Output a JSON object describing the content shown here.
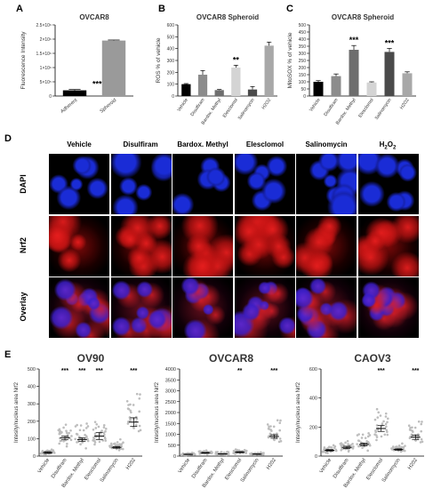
{
  "panels": {
    "A": {
      "letter": "A",
      "chart_data": {
        "type": "bar",
        "title": "OVCAR8",
        "ylabel": "Fluorescence Intensity",
        "categories": [
          "Adherent",
          "Spheroid"
        ],
        "values": [
          200000,
          1950000
        ],
        "errors": [
          30000,
          20000
        ],
        "colors": [
          "#000000",
          "#9a9a9a"
        ],
        "ylim": [
          0,
          2500000
        ],
        "yticks": [
          "0",
          "5×10⁵",
          "1×10⁶",
          "1.5×10⁶",
          "2×10⁶",
          "2.5×10⁶"
        ],
        "ytick_values": [
          0,
          500000,
          1000000,
          1500000,
          2000000,
          2500000
        ],
        "significance": [
          {
            "category": "Adherent",
            "label": "***"
          }
        ]
      }
    },
    "B": {
      "letter": "B",
      "chart_data": {
        "type": "bar",
        "title": "OVCAR8 Spheroid",
        "ylabel": "ROS % of vehicle",
        "categories": [
          "Vehicle",
          "Disulfiram",
          "Bardox. Methyl",
          "Elesclomol",
          "Salinomycin",
          "H2O2"
        ],
        "values": [
          100,
          180,
          50,
          240,
          55,
          425
        ],
        "errors": [
          5,
          35,
          5,
          20,
          25,
          30
        ],
        "colors": [
          "#000000",
          "#8c8c8c",
          "#6e6e6e",
          "#d4d4d4",
          "#4a4a4a",
          "#a8a8a8"
        ],
        "ylim": [
          0,
          600
        ],
        "yticks": [
          "0",
          "100",
          "200",
          "300",
          "400",
          "500",
          "600"
        ],
        "ytick_values": [
          0,
          100,
          200,
          300,
          400,
          500,
          600
        ],
        "significance": [
          {
            "category": "Elesclomol",
            "label": "**"
          }
        ]
      }
    },
    "C": {
      "letter": "C",
      "chart_data": {
        "type": "bar",
        "title": "OVCAR8 Spheroid",
        "ylabel": "MitoSOX % of vehicle",
        "categories": [
          "Vehicle",
          "Disulfiram",
          "Bardox. Methyl",
          "Elesclomol",
          "Salinomycin",
          "H2O2"
        ],
        "values": [
          100,
          140,
          325,
          95,
          310,
          160
        ],
        "errors": [
          8,
          15,
          30,
          5,
          25,
          10
        ],
        "colors": [
          "#000000",
          "#8c8c8c",
          "#6e6e6e",
          "#d4d4d4",
          "#4a4a4a",
          "#a8a8a8"
        ],
        "ylim": [
          0,
          500
        ],
        "yticks": [
          "0",
          "50",
          "100",
          "150",
          "200",
          "250",
          "300",
          "350",
          "400",
          "450",
          "500"
        ],
        "ytick_values": [
          0,
          50,
          100,
          150,
          200,
          250,
          300,
          350,
          400,
          450,
          500
        ],
        "significance": [
          {
            "category": "Bardox. Methyl",
            "label": "***"
          },
          {
            "category": "Salinomycin",
            "label": "***"
          }
        ]
      }
    },
    "D": {
      "letter": "D",
      "columns": [
        "Vehicle",
        "Disulfiram",
        "Bardox. Methyl",
        "Elesclomol",
        "Salinomycin",
        "H"
      ],
      "h2o2_sub": "2",
      "h2o2_tail": "O",
      "h2o2_sub2": "2",
      "rows": [
        "DAPI",
        "Nrf2",
        "Overlay"
      ]
    },
    "E": {
      "letter": "E",
      "charts": [
        {
          "type": "scatter",
          "title": "OV90",
          "ylabel": "Intesity/nucleus area Nrf2",
          "categories": [
            "Vehicle",
            "Disulfiram",
            "Bardox. Methyl",
            "Elesclomol",
            "Salinomycin",
            "H202"
          ],
          "means": [
            20,
            105,
            95,
            115,
            50,
            195
          ],
          "errors": [
            5,
            10,
            10,
            20,
            5,
            25
          ],
          "ylim": [
            0,
            500
          ],
          "yticks": [
            "0",
            "100",
            "200",
            "300",
            "400",
            "500"
          ],
          "ytick_values": [
            0,
            100,
            200,
            300,
            400,
            500
          ],
          "significance": [
            "",
            "***",
            "***",
            "***",
            "",
            "***"
          ]
        },
        {
          "type": "scatter",
          "title": "OVCAR8",
          "ylabel": "Intesity/nucleus area Nrf2",
          "categories": [
            "Vehicle",
            "Disulfiram",
            "Bardox. Methyl",
            "Elesclomol",
            "Salinomycin",
            "H202"
          ],
          "means": [
            80,
            150,
            100,
            180,
            90,
            900
          ],
          "errors": [
            10,
            20,
            10,
            25,
            10,
            80
          ],
          "ylim": [
            0,
            4000
          ],
          "broken_axis": true,
          "yticks": [
            "0",
            "500",
            "1000",
            "1500",
            "2000",
            "2500",
            "3000",
            "3500",
            "4000"
          ],
          "ytick_values": [
            0,
            500,
            1000,
            1500,
            2000,
            2500,
            3000,
            3500,
            4000
          ],
          "significance": [
            "",
            "",
            "",
            "**",
            "",
            "***"
          ]
        },
        {
          "type": "scatter",
          "title": "CAOV3",
          "ylabel": "Intesity/nucleus area Nrf2",
          "categories": [
            "Vehicle",
            "Disulfiram",
            "Bardox. Methyl",
            "Elesclomol",
            "Salinomycin",
            "H202"
          ],
          "means": [
            40,
            60,
            80,
            190,
            45,
            130
          ],
          "errors": [
            5,
            8,
            10,
            20,
            5,
            15
          ],
          "ylim": [
            0,
            600
          ],
          "yticks": [
            "0",
            "200",
            "400",
            "600"
          ],
          "ytick_values": [
            0,
            200,
            400,
            600
          ],
          "significance": [
            "",
            "",
            "",
            "***",
            "",
            "***"
          ]
        }
      ]
    }
  },
  "colors": {
    "dapi": "#1a2cd6",
    "nrf2": "#d81010",
    "dot": "#bdbdbd"
  }
}
